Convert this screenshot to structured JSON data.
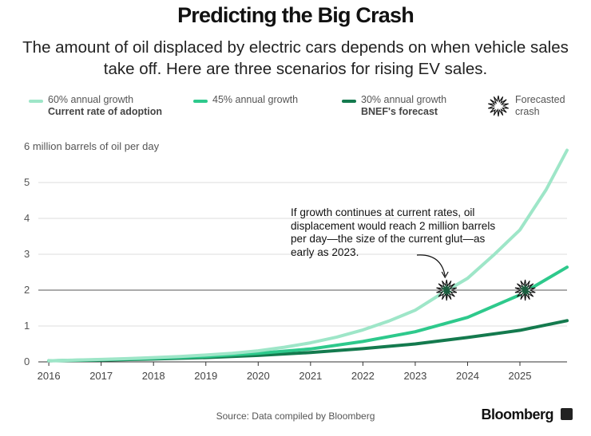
{
  "title": "Predicting the Big Crash",
  "subtitle": "The amount of oil displaced by electric cars depends on when vehicle sales take off. Here are three scenarios for rising EV sales.",
  "legend": {
    "s1_label": "60% annual growth",
    "s1_sub": "Current rate of adoption",
    "s2_label": "45% annual growth",
    "s3_label": "30% annual growth",
    "s3_sub": "BNEF's forecast",
    "crash_label1": "Forecasted",
    "crash_label2": "crash"
  },
  "annotation": "If growth continues at current rates, oil displacement would reach 2 million barrels per day—the size of the current glut—as early as 2023.",
  "source": "Source: Data compiled by Bloomberg",
  "brand": "Bloomberg",
  "colors": {
    "s60": "#9ee6c8",
    "s45": "#2ec98c",
    "s30": "#147a4e",
    "grid": "#dddddd",
    "refline": "#777777"
  },
  "chart_data": {
    "type": "line",
    "title": "Predicting the Big Crash",
    "ylabel": "million barrels of oil per day",
    "y_top_label": "6 million barrels of oil per day",
    "ylim": [
      0,
      6
    ],
    "yticks": [
      0,
      1,
      2,
      3,
      4,
      5,
      6
    ],
    "xlim": [
      2015.8,
      2025.9
    ],
    "xticks": [
      2016,
      2017,
      2018,
      2019,
      2020,
      2021,
      2022,
      2023,
      2024,
      2025
    ],
    "reference_line": 2,
    "series": [
      {
        "name": "60% annual growth",
        "subtitle": "Current rate of adoption",
        "x": [
          2016,
          2016.5,
          2017,
          2017.5,
          2018,
          2018.5,
          2019,
          2019.5,
          2020,
          2020.5,
          2021,
          2021.5,
          2022,
          2022.5,
          2023,
          2023.5,
          2024,
          2024.5,
          2025,
          2025.5,
          2025.9
        ],
        "values": [
          0.03,
          0.05,
          0.07,
          0.09,
          0.12,
          0.15,
          0.19,
          0.24,
          0.31,
          0.41,
          0.53,
          0.69,
          0.89,
          1.14,
          1.44,
          1.9,
          2.33,
          2.98,
          3.68,
          4.8,
          5.9
        ]
      },
      {
        "name": "45% annual growth",
        "x": [
          2016,
          2017,
          2018,
          2019,
          2020,
          2021,
          2022,
          2023,
          2024,
          2025,
          2025.9
        ],
        "values": [
          0.03,
          0.06,
          0.1,
          0.15,
          0.24,
          0.36,
          0.57,
          0.84,
          1.24,
          1.87,
          2.64
        ]
      },
      {
        "name": "30% annual growth",
        "subtitle": "BNEF's forecast",
        "x": [
          2016,
          2017,
          2018,
          2019,
          2020,
          2021,
          2022,
          2023,
          2024,
          2025,
          2025.9
        ],
        "values": [
          0.03,
          0.05,
          0.08,
          0.12,
          0.18,
          0.26,
          0.37,
          0.5,
          0.68,
          0.88,
          1.15
        ]
      }
    ],
    "crash_markers": [
      {
        "series": "60% annual growth",
        "x": 2023.6,
        "y": 2
      },
      {
        "series": "45% annual growth",
        "x": 2025.1,
        "y": 2
      }
    ]
  }
}
